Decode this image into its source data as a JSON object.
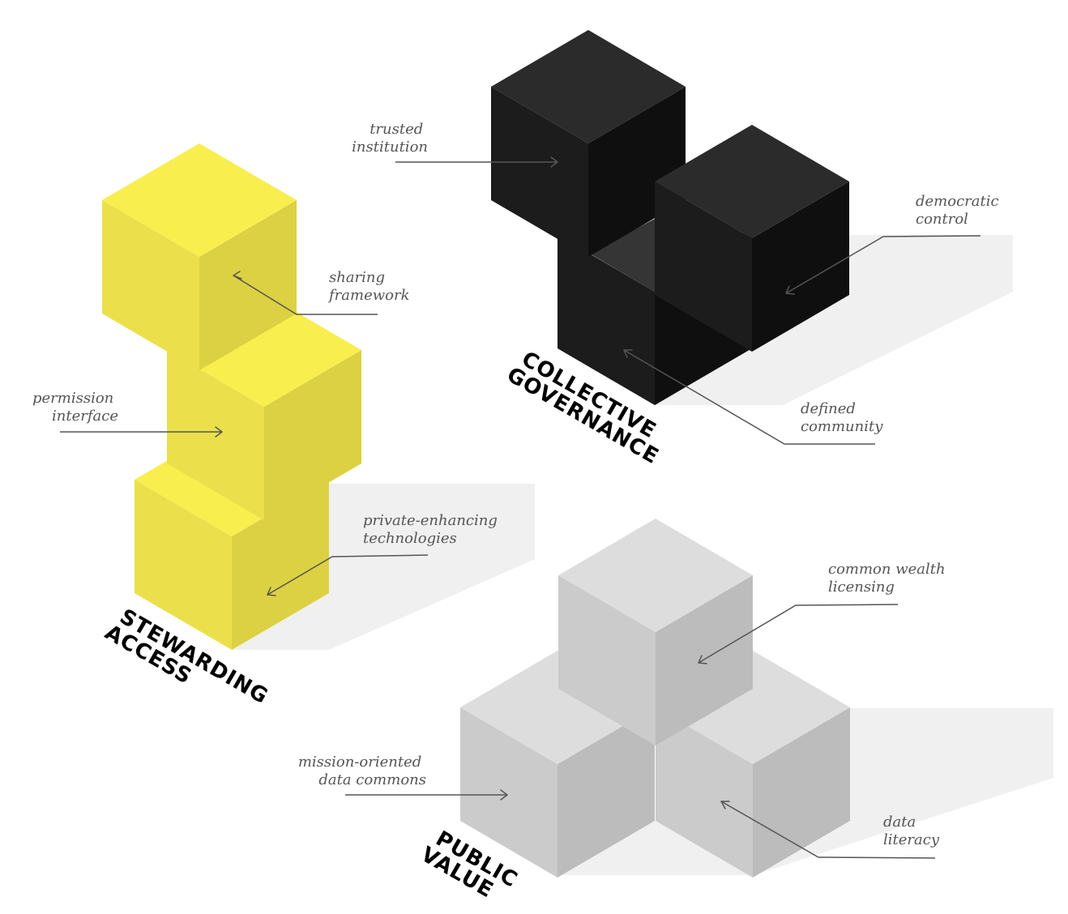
{
  "colors": {
    "stewarding": {
      "top": "#F8EE4E",
      "left": "#EBE04C",
      "right": "#DCD142"
    },
    "governance": {
      "top": "#2B2B2B",
      "left": "#1C1C1C",
      "right": "#0F0F0F",
      "inner": "#353535"
    },
    "public": {
      "top": "#DDDDDD",
      "left": "#CBCBCB",
      "right": "#BCBCBC"
    },
    "shadow": "#F0F0F0",
    "callout_text": "#555555",
    "title_text": "#000000"
  },
  "groups": {
    "stewarding_access": {
      "title_lines": [
        "STEWARDING",
        "ACCESS"
      ],
      "callouts": {
        "sharing_framework": [
          "sharing",
          "framework"
        ],
        "permission_interface": [
          "permission",
          "interface"
        ],
        "private_enhancing": [
          "private-enhancing",
          "technologies"
        ]
      }
    },
    "collective_governance": {
      "title_lines": [
        "COLLECTIVE",
        "GOVERNANCE"
      ],
      "callouts": {
        "trusted_institution": [
          "trusted",
          "institution"
        ],
        "democratic_control": [
          "democratic",
          "control"
        ],
        "defined_community": [
          "defined",
          "community"
        ]
      }
    },
    "public_value": {
      "title_lines": [
        "PUBLIC",
        "VALUE"
      ],
      "callouts": {
        "common_wealth_licensing": [
          "common wealth",
          "licensing"
        ],
        "mission_oriented": [
          "mission-oriented",
          "data commons"
        ],
        "data_literacy": [
          "data",
          "literacy"
        ]
      }
    }
  }
}
